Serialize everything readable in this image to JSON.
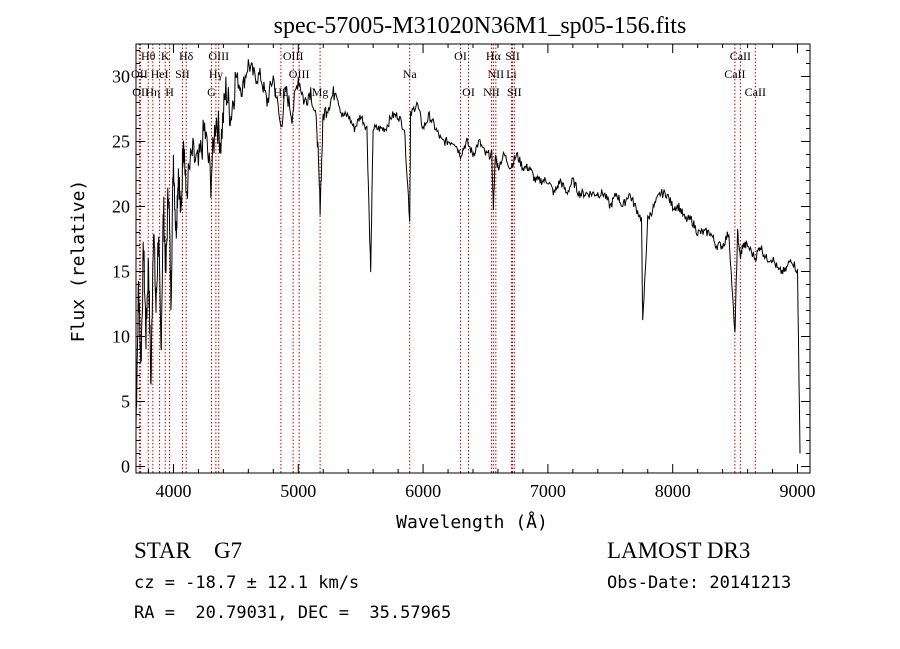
{
  "chart_data": {
    "type": "line",
    "title": "spec-57005-M31020N36M1_sp05-156.fits",
    "xlabel": "Wavelength (Å)",
    "ylabel": "Flux (relative)",
    "xlim": [
      3700,
      9100
    ],
    "ylim": [
      -0.5,
      32.5
    ],
    "xticks": [
      4000,
      5000,
      6000,
      7000,
      8000,
      9000
    ],
    "yticks": [
      0,
      5,
      10,
      15,
      20,
      25,
      30
    ],
    "series": [
      {
        "name": "spectrum",
        "x": [
          3700,
          3720,
          3740,
          3760,
          3780,
          3800,
          3820,
          3840,
          3860,
          3880,
          3900,
          3920,
          3940,
          3960,
          3980,
          4000,
          4020,
          4040,
          4060,
          4080,
          4100,
          4150,
          4200,
          4250,
          4300,
          4340,
          4380,
          4420,
          4460,
          4500,
          4550,
          4600,
          4650,
          4700,
          4750,
          4800,
          4861,
          4900,
          4950,
          5000,
          5050,
          5100,
          5150,
          5175,
          5200,
          5250,
          5300,
          5350,
          5400,
          5450,
          5500,
          5550,
          5580,
          5600,
          5650,
          5700,
          5750,
          5800,
          5850,
          5893,
          5900,
          5950,
          6000,
          6050,
          6100,
          6150,
          6200,
          6250,
          6300,
          6350,
          6400,
          6450,
          6500,
          6550,
          6563,
          6580,
          6600,
          6650,
          6700,
          6750,
          6800,
          6850,
          6900,
          6950,
          7000,
          7050,
          7100,
          7150,
          7200,
          7250,
          7300,
          7350,
          7400,
          7450,
          7500,
          7550,
          7600,
          7650,
          7700,
          7750,
          7760,
          7800,
          7850,
          7900,
          7950,
          8000,
          8050,
          8100,
          8150,
          8200,
          8250,
          8300,
          8350,
          8400,
          8450,
          8498,
          8520,
          8542,
          8560,
          8600,
          8662,
          8700,
          8750,
          8800,
          8850,
          8900,
          8950,
          9000,
          9020
        ],
        "y": [
          3,
          14,
          8,
          17,
          10,
          16,
          6,
          19,
          12,
          18,
          9,
          20,
          15,
          22,
          13,
          24,
          18,
          23,
          19,
          26,
          21,
          24,
          23,
          26,
          22,
          27,
          25,
          29,
          27,
          30,
          29,
          31,
          30,
          30,
          28,
          30,
          26,
          29,
          27,
          30,
          28,
          29,
          26,
          20,
          27,
          28,
          29,
          27,
          27,
          26,
          27,
          26,
          15,
          26,
          26,
          26,
          27,
          27,
          26,
          19,
          27,
          28,
          26,
          27,
          26,
          25,
          25,
          25,
          24,
          25,
          24,
          25,
          24,
          24,
          20,
          24,
          23,
          24,
          23,
          24,
          23,
          23,
          22,
          22,
          22,
          21,
          22,
          21,
          22,
          21,
          21,
          21,
          21,
          21,
          20,
          21,
          20,
          21,
          20,
          19,
          11,
          19,
          20,
          21,
          21,
          20,
          20,
          19,
          19,
          18,
          18,
          18,
          17,
          17,
          18,
          10,
          18,
          16,
          17,
          17,
          16,
          17,
          16,
          16,
          15,
          15,
          16,
          15,
          1
        ]
      }
    ],
    "lines": [
      {
        "label": "Hθ",
        "wl": 3798,
        "row": 0
      },
      {
        "label": "K",
        "wl": 3934,
        "row": 0
      },
      {
        "label": "Hδ",
        "wl": 4102,
        "row": 0
      },
      {
        "label": "OIII",
        "wl": 4363,
        "row": 0
      },
      {
        "label": "OIII",
        "wl": 4959,
        "row": 0
      },
      {
        "label": "Na",
        "wl": 5893,
        "row": 1
      },
      {
        "label": "OI",
        "wl": 6300,
        "row": 0
      },
      {
        "label": "Hα",
        "wl": 6563,
        "row": 0
      },
      {
        "label": "SII",
        "wl": 6717,
        "row": 0
      },
      {
        "label": "CaII",
        "wl": 8542,
        "row": 0
      },
      {
        "label": "OII",
        "wl": 3727,
        "row": 1
      },
      {
        "label": "HeI",
        "wl": 3889,
        "row": 1
      },
      {
        "label": "SII",
        "wl": 4072,
        "row": 1
      },
      {
        "label": "Hγ",
        "wl": 4340,
        "row": 1
      },
      {
        "label": "OIII",
        "wl": 5007,
        "row": 1
      },
      {
        "label": "NII",
        "wl": 6583,
        "row": 1
      },
      {
        "label": "Li",
        "wl": 6708,
        "row": 1
      },
      {
        "label": "CaII",
        "wl": 8498,
        "row": 1
      },
      {
        "label": "OII",
        "wl": 3737,
        "row": 2
      },
      {
        "label": "Hη",
        "wl": 3835,
        "row": 2
      },
      {
        "label": "H",
        "wl": 3969,
        "row": 2
      },
      {
        "label": "G",
        "wl": 4305,
        "row": 2
      },
      {
        "label": "Hβ",
        "wl": 4861,
        "row": 2
      },
      {
        "label": "Mg",
        "wl": 5175,
        "row": 2
      },
      {
        "label": "OI",
        "wl": 6364,
        "row": 2
      },
      {
        "label": "NII",
        "wl": 6548,
        "row": 2
      },
      {
        "label": "SII",
        "wl": 6731,
        "row": 2
      },
      {
        "label": "CaII",
        "wl": 8662,
        "row": 2
      }
    ]
  },
  "footer": {
    "class_label": "STAR",
    "subclass": "G7",
    "survey": "LAMOST DR3",
    "cz": "cz = -18.7 ± 12.1 km/s",
    "obs_date": "Obs-Date: 20141213",
    "coords": "RA =  20.79031, DEC =  35.57965"
  }
}
